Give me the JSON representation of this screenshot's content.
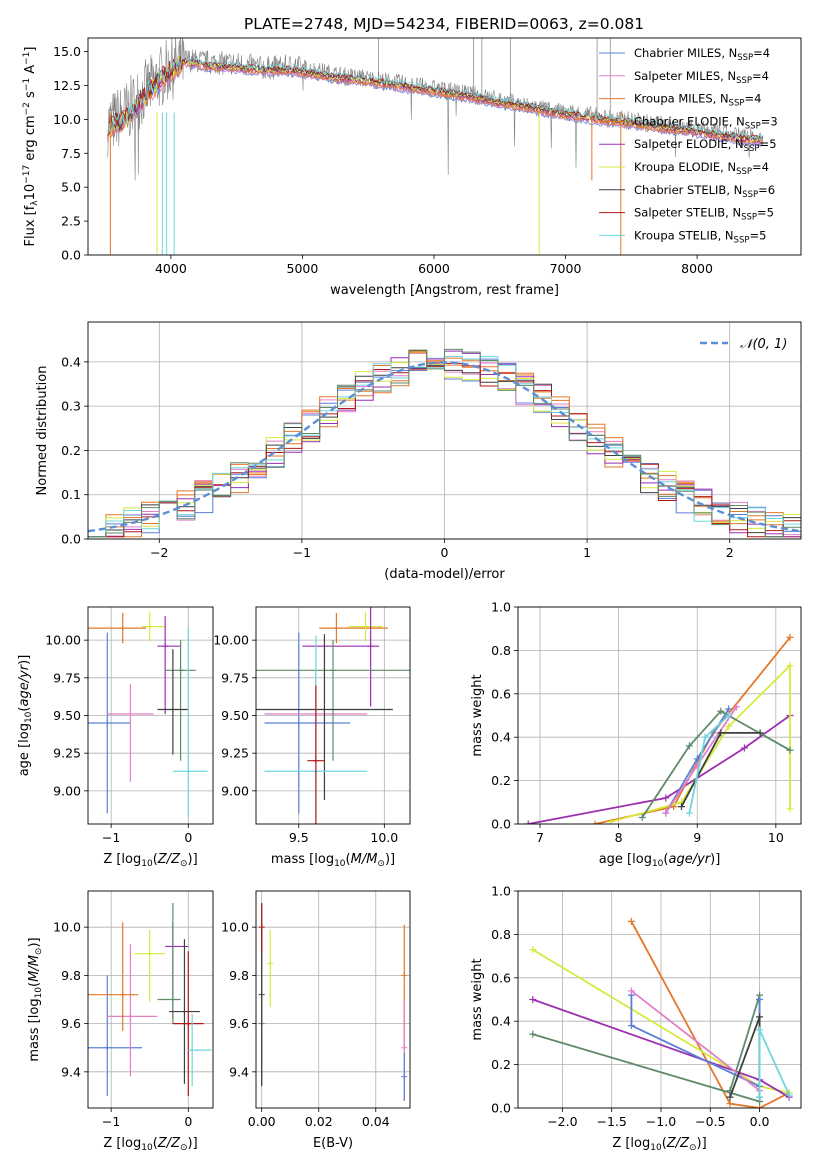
{
  "figure": {
    "title": "PLATE=2748, MJD=54234, FIBERID=0063, z=0.081"
  },
  "colors": {
    "Chabrier MILES": "#5b7fd9",
    "Salpeter MILES": "#e27fc9",
    "Kroupa MILES": "#e3782a",
    "Chabrier ELODIE": "#e3782a",
    "Salpeter ELODIE": "#9b2fb0",
    "Kroupa ELODIE": "#d6ea3c",
    "Chabrier STELIB": "#3f3f3f",
    "Salpeter STELIB": "#b21818",
    "Kroupa STELIB": "#6fd6dd",
    "data": "#808080",
    "gaussian": "#5b8fd6",
    "teal": "#5f8a69"
  },
  "chart_data": [
    {
      "id": "spectrum",
      "type": "line",
      "xlabel": "wavelength [Angstrom, rest frame]",
      "ylabel": "Flux [f_λ10^-17 erg cm^-2 s^-1 A^-1]",
      "xlim": [
        3370,
        8790
      ],
      "ylim": [
        0,
        16
      ],
      "xticks": [
        4000,
        5000,
        6000,
        7000,
        8000
      ],
      "yticks": [
        0.0,
        2.5,
        5.0,
        7.5,
        10.0,
        12.5,
        15.0
      ],
      "legend": {
        "placement": "top-right",
        "entries": [
          {
            "label": "Chabrier MILES, N",
            "sub": "SSP",
            "tail": "=4",
            "color": "#5b7fd9"
          },
          {
            "label": "Salpeter MILES, N",
            "sub": "SSP",
            "tail": "=4",
            "color": "#e27fc9"
          },
          {
            "label": "Kroupa MILES, N",
            "sub": "SSP",
            "tail": "=4",
            "color": "#e3782a"
          },
          {
            "label": "Chabrier ELODIE, N",
            "sub": "SSP",
            "tail": "=3",
            "color": "#e3782a"
          },
          {
            "label": "Salpeter ELODIE, N",
            "sub": "SSP",
            "tail": "=5",
            "color": "#9b2fb0"
          },
          {
            "label": "Kroupa ELODIE, N",
            "sub": "SSP",
            "tail": "=4",
            "color": "#d6ea3c"
          },
          {
            "label": "Chabrier STELIB, N",
            "sub": "SSP",
            "tail": "=6",
            "color": "#3f3f3f"
          },
          {
            "label": "Salpeter STELIB, N",
            "sub": "SSP",
            "tail": "=5",
            "color": "#b21818"
          },
          {
            "label": "Kroupa STELIB, N",
            "sub": "SSP",
            "tail": "=5",
            "color": "#6fd6dd"
          }
        ]
      },
      "data_envelope": {
        "x": [
          3520,
          3650,
          3800,
          3950,
          4100,
          4300,
          4500,
          4700,
          4900,
          5100,
          5300,
          5500,
          5700,
          5900,
          6100,
          6300,
          6500,
          6700,
          6900,
          7100,
          7300,
          7500,
          7700,
          7900,
          8100,
          8300,
          8500
        ],
        "y": [
          9.6,
          10.4,
          12.0,
          13.4,
          14.4,
          14.2,
          14.1,
          13.8,
          13.9,
          13.6,
          13.2,
          13.0,
          12.7,
          12.4,
          12.1,
          11.8,
          11.4,
          11.0,
          10.6,
          10.4,
          10.1,
          9.9,
          9.6,
          9.4,
          9.1,
          8.8,
          8.6
        ]
      },
      "model_mean": {
        "x": [
          3520,
          3650,
          3800,
          3950,
          4100,
          4300,
          4500,
          4700,
          4900,
          5100,
          5300,
          5500,
          5700,
          5900,
          6100,
          6300,
          6500,
          6700,
          6900,
          7100,
          7300,
          7500,
          7700,
          7900,
          8100,
          8300,
          8500
        ],
        "y": [
          9.3,
          10.0,
          11.6,
          13.2,
          14.2,
          13.9,
          13.8,
          13.6,
          13.6,
          13.3,
          13.0,
          12.8,
          12.5,
          12.2,
          11.9,
          11.6,
          11.2,
          10.9,
          10.5,
          10.2,
          9.9,
          9.7,
          9.4,
          9.2,
          8.9,
          8.6,
          8.4
        ]
      }
    },
    {
      "id": "residuals",
      "type": "line",
      "xlabel": "(data-model)/error",
      "ylabel": "Normed distribution",
      "xlim": [
        -2.5,
        2.5
      ],
      "ylim": [
        0,
        0.49
      ],
      "xticks": [
        -2,
        -1,
        0,
        1,
        2
      ],
      "yticks": [
        0.0,
        0.1,
        0.2,
        0.3,
        0.4
      ],
      "grid": true,
      "legend": {
        "placement": "top-right",
        "label": "𝒩(0, 1)"
      },
      "gaussian": {
        "mean": 0,
        "sigma": 1
      }
    },
    {
      "id": "age_vs_Z",
      "type": "scatter",
      "xlabel": "Z [log10(Z/Z⊙)]",
      "ylabel": "age  [log10(age/yr)]",
      "xlim": [
        -1.3,
        0.32
      ],
      "ylim": [
        8.78,
        10.22
      ],
      "xticks": [
        -1,
        0
      ],
      "yticks": [
        9.0,
        9.25,
        9.5,
        9.75,
        10.0
      ],
      "grid": true,
      "points": [
        {
          "x": -1.05,
          "y": 9.45,
          "xerr": [
            0.3,
            0.3
          ],
          "yerr": [
            0.6,
            0.6
          ],
          "color": "#5b7fd9"
        },
        {
          "x": -0.75,
          "y": 9.51,
          "xerr": [
            0.3,
            0.3
          ],
          "yerr": [
            0.45,
            0.2
          ],
          "color": "#e27fc9"
        },
        {
          "x": -0.85,
          "y": 10.08,
          "xerr": [
            0.5,
            0.3
          ],
          "yerr": [
            0.1,
            0.1
          ],
          "color": "#e3782a"
        },
        {
          "x": -0.5,
          "y": 10.09,
          "xerr": [
            0.1,
            0.2
          ],
          "yerr": [
            0.1,
            0.1
          ],
          "color": "#d6ea3c"
        },
        {
          "x": -0.3,
          "y": 9.96,
          "xerr": [
            0.1,
            0.2
          ],
          "yerr": [
            0.45,
            0.2
          ],
          "color": "#9b2fb0"
        },
        {
          "x": -0.1,
          "y": 9.8,
          "xerr": [
            0.2,
            0.2
          ],
          "yerr": [
            0.6,
            0.2
          ],
          "color": "#5f8a69"
        },
        {
          "x": -0.2,
          "y": 9.54,
          "xerr": [
            0.2,
            0.2
          ],
          "yerr": [
            0.3,
            0.4
          ],
          "color": "#3f3f3f"
        },
        {
          "x": 0.0,
          "y": 9.13,
          "xerr": [
            0.2,
            0.25
          ],
          "yerr": [
            0.3,
            0.96
          ],
          "color": "#6fd6dd"
        }
      ]
    },
    {
      "id": "age_vs_mass",
      "type": "scatter",
      "xlabel": "mass [log10(M/M⊙)]",
      "xlim": [
        9.25,
        10.15
      ],
      "ylim": [
        8.78,
        10.22
      ],
      "xticks": [
        9.5,
        10.0
      ],
      "yticks": [
        9.0,
        9.25,
        9.5,
        9.75,
        10.0
      ],
      "grid": true,
      "points": [
        {
          "x": 9.5,
          "y": 9.45,
          "xerr": [
            0.2,
            0.3
          ],
          "yerr": [
            0.6,
            0.6
          ],
          "color": "#5b7fd9"
        },
        {
          "x": 9.6,
          "y": 9.51,
          "xerr": [
            0.3,
            0.3
          ],
          "yerr": [
            0.3,
            0.3
          ],
          "color": "#e27fc9"
        },
        {
          "x": 9.72,
          "y": 10.08,
          "xerr": [
            0.1,
            0.3
          ],
          "yerr": [
            0.1,
            0.1
          ],
          "color": "#e3782a"
        },
        {
          "x": 9.89,
          "y": 10.09,
          "xerr": [
            0.1,
            0.1
          ],
          "yerr": [
            0.1,
            0.1
          ],
          "color": "#d6ea3c"
        },
        {
          "x": 9.92,
          "y": 9.96,
          "xerr": [
            0.4,
            0.05
          ],
          "yerr": [
            0.4,
            0.4
          ],
          "color": "#9b2fb0"
        },
        {
          "x": 9.7,
          "y": 9.8,
          "xerr": [
            0.5,
            0.5
          ],
          "yerr": [
            0.6,
            0.2
          ],
          "color": "#5f8a69"
        },
        {
          "x": 9.65,
          "y": 9.54,
          "xerr": [
            0.4,
            0.4
          ],
          "yerr": [
            0.6,
            0.5
          ],
          "color": "#3f3f3f"
        },
        {
          "x": 9.6,
          "y": 9.13,
          "xerr": [
            0.3,
            0.3
          ],
          "yerr": [
            0.3,
            0.9
          ],
          "color": "#6fd6dd"
        },
        {
          "x": 9.6,
          "y": 9.2,
          "xerr": [
            0.05,
            0.05
          ],
          "yerr": [
            0.7,
            0.5
          ],
          "color": "#b21818"
        }
      ]
    },
    {
      "id": "massweight_vs_age",
      "type": "line",
      "xlabel": "age  [log10(age/yr)]",
      "ylabel": "mass weight",
      "xlim": [
        6.72,
        10.32
      ],
      "ylim": [
        0,
        1.0
      ],
      "xticks": [
        7,
        8,
        9,
        10
      ],
      "yticks": [
        0.0,
        0.2,
        0.4,
        0.6,
        0.8,
        1.0
      ],
      "grid": true,
      "series": [
        {
          "color": "#9b2fb0",
          "x": [
            6.85,
            8.6,
            9.6,
            10.18
          ],
          "y": [
            0.0,
            0.12,
            0.35,
            0.5
          ]
        },
        {
          "color": "#e3782a",
          "x": [
            7.7,
            8.7,
            9.2,
            10.18
          ],
          "y": [
            0.0,
            0.08,
            0.42,
            0.86
          ]
        },
        {
          "color": "#d6ea3c",
          "x": [
            7.9,
            8.8,
            9.4,
            10.18,
            10.18
          ],
          "y": [
            0.01,
            0.1,
            0.45,
            0.73,
            0.07
          ]
        },
        {
          "color": "#5f8a69",
          "x": [
            8.3,
            8.9,
            9.3,
            10.18
          ],
          "y": [
            0.03,
            0.36,
            0.52,
            0.34
          ]
        },
        {
          "color": "#5b7fd9",
          "x": [
            8.6,
            9.0,
            9.4
          ],
          "y": [
            0.05,
            0.3,
            0.53
          ]
        },
        {
          "color": "#e27fc9",
          "x": [
            8.6,
            9.0,
            9.5
          ],
          "y": [
            0.05,
            0.27,
            0.54
          ]
        },
        {
          "color": "#3f3f3f",
          "x": [
            8.8,
            9.3,
            9.8
          ],
          "y": [
            0.08,
            0.42,
            0.42
          ]
        },
        {
          "color": "#6fd6dd",
          "x": [
            8.9,
            9.1,
            9.4
          ],
          "y": [
            0.05,
            0.4,
            0.5
          ]
        }
      ]
    },
    {
      "id": "mass_vs_Z",
      "type": "scatter",
      "xlabel": "Z [log10(Z/Z⊙)]",
      "ylabel": "mass [log10(M/M⊙)]",
      "xlim": [
        -1.3,
        0.32
      ],
      "ylim": [
        9.25,
        10.15
      ],
      "xticks": [
        -1,
        0
      ],
      "yticks": [
        9.4,
        9.6,
        9.8,
        10.0
      ],
      "grid": true,
      "points": [
        {
          "x": -1.05,
          "y": 9.5,
          "xerr": [
            0.3,
            0.45
          ],
          "yerr": [
            0.2,
            0.3
          ],
          "color": "#5b7fd9"
        },
        {
          "x": -0.75,
          "y": 9.63,
          "xerr": [
            0.3,
            0.35
          ],
          "yerr": [
            0.25,
            0.3
          ],
          "color": "#e27fc9"
        },
        {
          "x": -0.85,
          "y": 9.72,
          "xerr": [
            0.5,
            0.2
          ],
          "yerr": [
            0.15,
            0.3
          ],
          "color": "#e3782a"
        },
        {
          "x": -0.5,
          "y": 9.89,
          "xerr": [
            0.2,
            0.2
          ],
          "yerr": [
            0.2,
            0.1
          ],
          "color": "#d6ea3c"
        },
        {
          "x": -0.2,
          "y": 9.92,
          "xerr": [
            0.1,
            0.2
          ],
          "yerr": [
            0.3,
            0.1
          ],
          "color": "#9b2fb0"
        },
        {
          "x": -0.2,
          "y": 9.7,
          "xerr": [
            0.2,
            0.1
          ],
          "yerr": [
            0.1,
            0.4
          ],
          "color": "#5f8a69"
        },
        {
          "x": -0.05,
          "y": 9.65,
          "xerr": [
            0.2,
            0.2
          ],
          "yerr": [
            0.3,
            0.3
          ],
          "color": "#3f3f3f"
        },
        {
          "x": 0.0,
          "y": 9.6,
          "xerr": [
            0.2,
            0.2
          ],
          "yerr": [
            0.3,
            0.3
          ],
          "color": "#b21818"
        },
        {
          "x": 0.05,
          "y": 9.49,
          "xerr": [
            0.05,
            0.25
          ],
          "yerr": [
            0.15,
            0.15
          ],
          "color": "#6fd6dd"
        }
      ]
    },
    {
      "id": "mass_vs_ebv",
      "type": "scatter",
      "xlabel": "E(B-V)",
      "xlim": [
        -0.002,
        0.052
      ],
      "ylim": [
        9.25,
        10.15
      ],
      "xticks": [
        0.0,
        0.02,
        0.04
      ],
      "yticks": [
        9.4,
        9.6,
        9.8,
        10.0
      ],
      "grid": true,
      "points": [
        {
          "x": 0.0,
          "y": 9.6,
          "xerr": [
            0,
            0
          ],
          "yerr": [
            0.25,
            0.5
          ],
          "color": "#5f8a69"
        },
        {
          "x": 0.0,
          "y": 9.72,
          "xerr": [
            0,
            0
          ],
          "yerr": [
            0.38,
            0.3
          ],
          "color": "#3f3f3f"
        },
        {
          "x": 0.003,
          "y": 9.85,
          "xerr": [
            0,
            0
          ],
          "yerr": [
            0.18,
            0.14
          ],
          "color": "#d6ea3c"
        },
        {
          "x": 0.05,
          "y": 9.8,
          "xerr": [
            0,
            0
          ],
          "yerr": [
            0.3,
            0.21
          ],
          "color": "#e3782a"
        },
        {
          "x": 0.05,
          "y": 9.5,
          "xerr": [
            0,
            0
          ],
          "yerr": [
            0.22,
            0.2
          ],
          "color": "#e27fc9"
        },
        {
          "x": 0.05,
          "y": 9.38,
          "xerr": [
            0,
            0
          ],
          "yerr": [
            0.1,
            0.1
          ],
          "color": "#5b7fd9"
        },
        {
          "x": 0.0,
          "y": 10.0,
          "xerr": [
            0,
            0
          ],
          "yerr": [
            0.1,
            0.1
          ],
          "color": "#b21818"
        }
      ]
    },
    {
      "id": "massweight_vs_Z",
      "type": "line",
      "xlabel": "Z [log10(Z/Z⊙)]",
      "ylabel": "mass weight",
      "xlim": [
        -2.45,
        0.42
      ],
      "ylim": [
        0,
        1.0
      ],
      "xticks": [
        -2.0,
        -1.5,
        -1.0,
        -0.5,
        0.0
      ],
      "yticks": [
        0.0,
        0.2,
        0.4,
        0.6,
        0.8,
        1.0
      ],
      "grid": true,
      "series": [
        {
          "color": "#e3782a",
          "x": [
            -1.3,
            -0.3,
            0.0,
            0.3
          ],
          "y": [
            0.86,
            0.02,
            0.0,
            0.07
          ]
        },
        {
          "color": "#d6ea3c",
          "x": [
            -2.3,
            0.0,
            0.3
          ],
          "y": [
            0.73,
            0.1,
            0.07
          ]
        },
        {
          "color": "#9b2fb0",
          "x": [
            -2.3,
            0.0,
            0.3
          ],
          "y": [
            0.5,
            0.13,
            0.05
          ]
        },
        {
          "color": "#5f8a69",
          "x": [
            -2.3,
            0.0,
            0.0,
            -0.3
          ],
          "y": [
            0.34,
            0.03,
            0.52,
            0.08
          ]
        },
        {
          "color": "#5b7fd9",
          "x": [
            -1.3,
            -1.3,
            0.0,
            0.0
          ],
          "y": [
            0.52,
            0.38,
            0.1,
            0.5
          ]
        },
        {
          "color": "#e27fc9",
          "x": [
            -1.3,
            0.0
          ],
          "y": [
            0.54,
            0.08
          ]
        },
        {
          "color": "#3f3f3f",
          "x": [
            -0.3,
            0.0,
            0.0
          ],
          "y": [
            0.05,
            0.42,
            0.05
          ]
        },
        {
          "color": "#6fd6dd",
          "x": [
            0.0,
            0.0,
            0.3
          ],
          "y": [
            0.05,
            0.36,
            0.06
          ]
        }
      ]
    }
  ]
}
